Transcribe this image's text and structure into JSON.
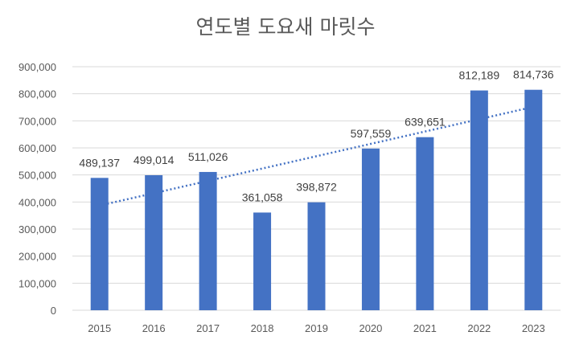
{
  "chart_data": {
    "type": "bar",
    "title": "연도별 도요새 마릿수",
    "categories": [
      "2015",
      "2016",
      "2017",
      "2018",
      "2019",
      "2020",
      "2021",
      "2022",
      "2023"
    ],
    "values": [
      489137,
      499014,
      511026,
      361058,
      398872,
      597559,
      639651,
      812189,
      814736
    ],
    "data_labels": [
      "489,137",
      "499,014",
      "511,026",
      "361,058",
      "398,872",
      "597,559",
      "639,651",
      "812,189",
      "814,736"
    ],
    "y_ticks": [
      "0",
      "100,000",
      "200,000",
      "300,000",
      "400,000",
      "500,000",
      "600,000",
      "700,000",
      "800,000",
      "900,000"
    ],
    "ylim": [
      0,
      900000
    ],
    "xlabel": "",
    "ylabel": "",
    "grid": true,
    "legend": "none",
    "trendline": {
      "type": "linear",
      "style": "dotted"
    },
    "colors": {
      "bar": "#4472c4",
      "trendline": "#4472c4",
      "grid": "#d9d9d9"
    }
  }
}
